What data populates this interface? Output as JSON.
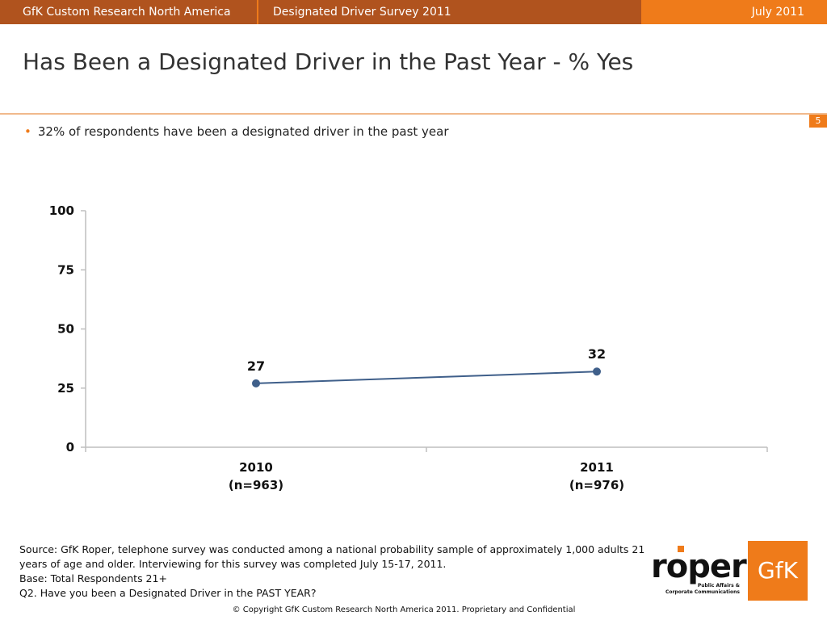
{
  "header": {
    "org": "GfK Custom Research North America",
    "survey": "Designated Driver Survey 2011",
    "date": "July 2011"
  },
  "title": "Has Been a Designated Driver in the Past Year - % Yes",
  "page_number": "5",
  "bullet": "32% of respondents have been a designated driver in the past year",
  "chart_data": {
    "type": "line",
    "title": "",
    "xlabel": "",
    "ylabel": "",
    "ylim": [
      0,
      100
    ],
    "yticks": [
      0,
      25,
      50,
      75,
      100
    ],
    "categories": [
      [
        "2010",
        "(n=963)"
      ],
      [
        "2011",
        "(n=976)"
      ]
    ],
    "series": [
      {
        "values": [
          27,
          32
        ],
        "color": "#3f5f8a"
      }
    ],
    "grid": false,
    "legend": "none",
    "data_labels": true
  },
  "footnotes": {
    "source": "Source: GfK Roper, telephone survey was conducted among a national probability sample of approximately 1,000 adults 21 years of age and older.  Interviewing for this survey was completed July 15-17, 2011.",
    "base": "Base: Total Respondents 21+",
    "question": "Q2. Have you been a Designated Driver in the PAST YEAR?"
  },
  "copyright": "© Copyright GfK Custom Research North America 2011.  Proprietary and Confidential",
  "logos": {
    "roper_word": "roper",
    "roper_tagline_1": "Public Affairs &",
    "roper_tagline_2": "Corporate Communications",
    "gfk": "GfK"
  },
  "colors": {
    "accent": "#ef7b1a",
    "header_dark": "#b0531e",
    "line": "#3f5f8a"
  }
}
